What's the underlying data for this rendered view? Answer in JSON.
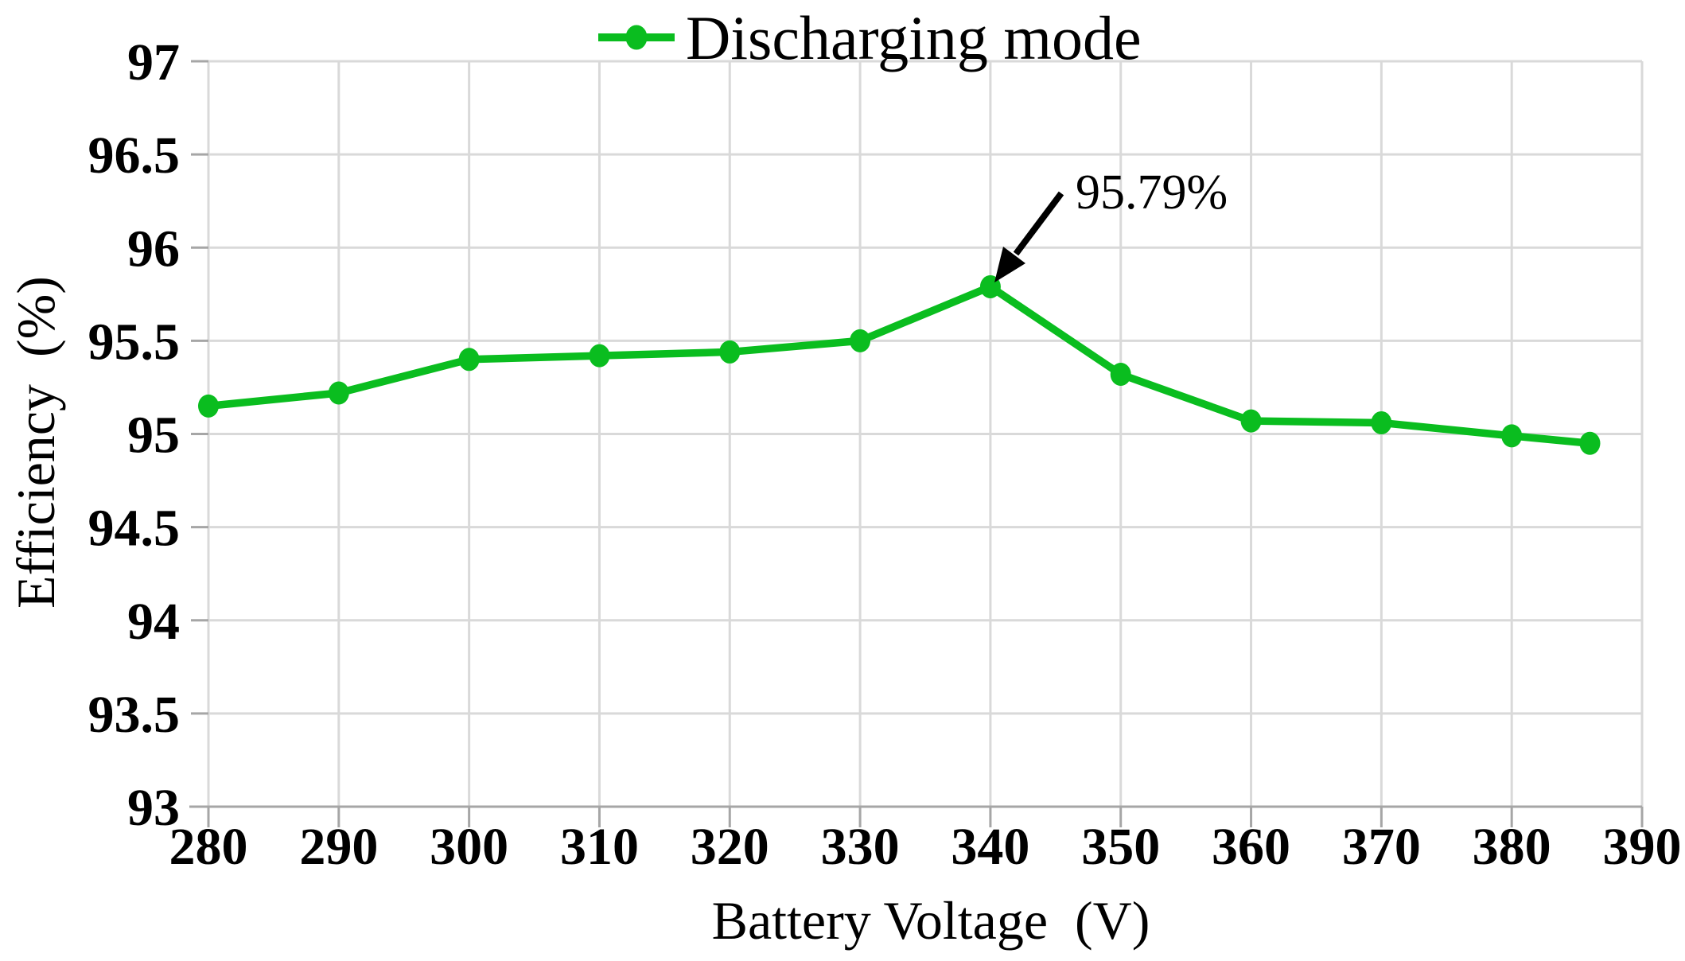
{
  "figure": {
    "background_color": "#ffffff",
    "gridline_color": "#d9d9d9",
    "axis_line_color": "#a6a6a6",
    "tick_color": "#a6a6a6",
    "text_color": "#000000"
  },
  "legend": {
    "label": "Discharging mode",
    "marker": "line-circle-icon",
    "color": "#0abd1f",
    "position": "top-center"
  },
  "annotation": {
    "label": "95.79%",
    "points_at": {
      "x": 340,
      "y": 95.79
    },
    "arrow_color": "#000000"
  },
  "axes": {
    "x_title": "Battery Voltage  (V)",
    "y_title": "Efficiency  (%)",
    "x_tick_labels": [
      "280",
      "290",
      "300",
      "310",
      "320",
      "330",
      "340",
      "350",
      "360",
      "370",
      "380",
      "390"
    ],
    "y_tick_labels": [
      "93",
      "93.5",
      "94",
      "94.5",
      "95",
      "95.5",
      "96",
      "96.5",
      "97"
    ]
  },
  "chart_data": {
    "type": "line",
    "title": "",
    "xlabel": "Battery Voltage  (V)",
    "ylabel": "Efficiency  (%)",
    "xlim": [
      280,
      390
    ],
    "ylim": [
      93,
      97
    ],
    "x_ticks": [
      280,
      290,
      300,
      310,
      320,
      330,
      340,
      350,
      360,
      370,
      380,
      390
    ],
    "y_ticks": [
      93,
      93.5,
      94,
      94.5,
      95,
      95.5,
      96,
      96.5,
      97
    ],
    "grid": true,
    "legend_position": "top-center",
    "series": [
      {
        "name": "Discharging mode",
        "color": "#0abd1f",
        "marker": "circle",
        "x": [
          280,
          290,
          300,
          310,
          320,
          330,
          340,
          350,
          360,
          370,
          380,
          386
        ],
        "values": [
          95.15,
          95.22,
          95.4,
          95.42,
          95.44,
          95.5,
          95.79,
          95.32,
          95.07,
          95.06,
          94.99,
          94.95
        ]
      }
    ],
    "annotations": [
      {
        "text": "95.79%",
        "target_x": 340,
        "target_y": 95.79
      }
    ]
  }
}
